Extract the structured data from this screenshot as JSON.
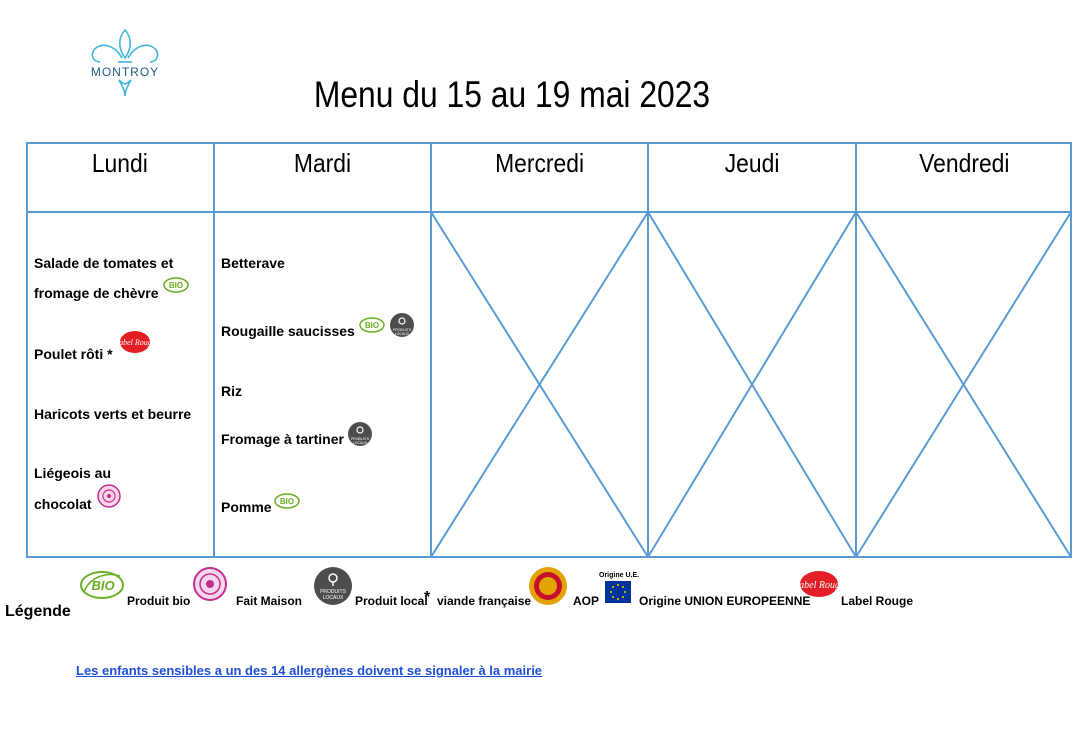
{
  "header": {
    "logo_text": "MONTROY",
    "title": "Menu du 15 au 19 mai 2023"
  },
  "days": [
    "Lundi",
    "Mardi",
    "Mercredi",
    "Jeudi",
    "Vendredi"
  ],
  "menu": {
    "lundi": {
      "d1_line1": "Salade de tomates et",
      "d1_line2": "fromage de chèvre",
      "d2": "Poulet rôti *",
      "d3": "Haricots verts et beurre",
      "d4_line1": "Liégeois au",
      "d4_line2": "chocolat"
    },
    "mardi": {
      "d1": "Betterave",
      "d2": "Rougaille saucisses",
      "d3": "Riz",
      "d4": "Fromage à tartiner",
      "d5": "Pomme"
    }
  },
  "legend": {
    "title": "Légende",
    "bio": "Produit bio",
    "fait_maison": "Fait Maison",
    "local": "Produit local",
    "asterisk": "*",
    "viande": "viande française",
    "aop": "AOP",
    "origine_ue_badge": "Origine U.E.",
    "origine_ue": "Origine UNION EUROPEENNE",
    "label_rouge": "Label Rouge"
  },
  "footer": {
    "allergen_note": "Les enfants sensibles a un des 14 allergènes doivent se signaler à la mairie"
  },
  "badge_text": {
    "bio": "BIO",
    "local_line1": "PRODUITS",
    "local_line2": "LOCAUX",
    "label_rouge": "Label Rouge"
  },
  "colors": {
    "grid": "#5b9bd5",
    "bio": "#6ab023",
    "fait_maison": "#c0308c",
    "local": "#4d4d4d",
    "aop": "#e3a300",
    "label_rouge": "#e31e24",
    "eu": "#003399",
    "link": "#1f4fd6"
  }
}
